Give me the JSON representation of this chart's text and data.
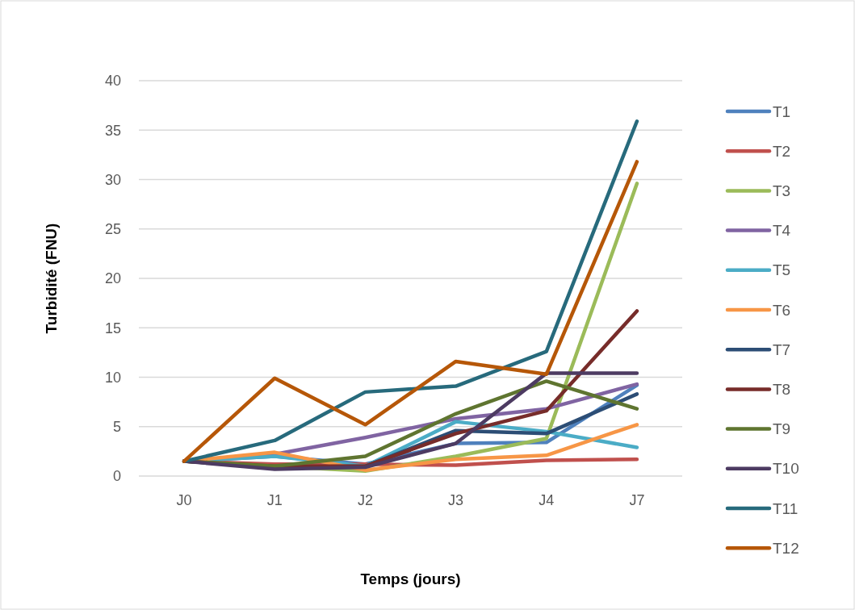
{
  "chart_data": {
    "type": "line",
    "xlabel": "Temps (jours)",
    "ylabel": "Turbidité (FNU)",
    "categories": [
      "J0",
      "J1",
      "J2",
      "J3",
      "J4",
      "J7"
    ],
    "ylim": [
      0,
      40
    ],
    "yticks": [
      0,
      5,
      10,
      15,
      20,
      25,
      30,
      35,
      40
    ],
    "grid": "y",
    "legend": "right",
    "marker": "none",
    "line_style": "solid",
    "series": [
      {
        "name": "T1",
        "color": "#4f81bd",
        "values": [
          1.5,
          2.0,
          1.2,
          3.3,
          3.4,
          9.2
        ]
      },
      {
        "name": "T2",
        "color": "#c0504d",
        "values": [
          1.5,
          1.2,
          1.2,
          1.1,
          1.6,
          1.7
        ]
      },
      {
        "name": "T3",
        "color": "#9bbb59",
        "values": [
          1.5,
          1.0,
          0.5,
          2.0,
          3.8,
          29.6
        ]
      },
      {
        "name": "T4",
        "color": "#8064a2",
        "values": [
          1.5,
          2.2,
          3.9,
          5.8,
          6.8,
          9.3
        ]
      },
      {
        "name": "T5",
        "color": "#4bacc6",
        "values": [
          1.5,
          2.0,
          1.0,
          5.5,
          4.5,
          2.9
        ]
      },
      {
        "name": "T6",
        "color": "#f79646",
        "values": [
          1.5,
          2.4,
          0.6,
          1.7,
          2.1,
          5.2
        ]
      },
      {
        "name": "T7",
        "color": "#2c4d75",
        "values": [
          1.5,
          0.9,
          1.0,
          4.6,
          4.3,
          8.3
        ]
      },
      {
        "name": "T8",
        "color": "#772c2a",
        "values": [
          1.5,
          1.0,
          1.0,
          4.3,
          6.6,
          16.7
        ]
      },
      {
        "name": "T9",
        "color": "#5f7530",
        "values": [
          1.5,
          1.0,
          2.0,
          6.3,
          9.6,
          6.8
        ]
      },
      {
        "name": "T10",
        "color": "#4d3b62",
        "values": [
          1.5,
          0.7,
          0.9,
          3.3,
          10.4,
          10.4
        ]
      },
      {
        "name": "T11",
        "color": "#276a7c",
        "values": [
          1.5,
          3.6,
          8.5,
          9.1,
          12.6,
          35.9
        ]
      },
      {
        "name": "T12",
        "color": "#b65708",
        "values": [
          1.5,
          9.9,
          5.2,
          11.6,
          10.3,
          31.8
        ]
      }
    ]
  }
}
